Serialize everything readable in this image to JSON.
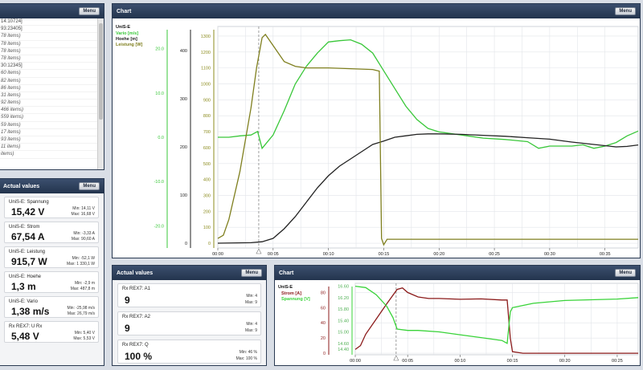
{
  "top_left_panel": {
    "menu_label": "Menu",
    "items": [
      {
        "text": "14:10724]",
        "italic": false
      },
      {
        "text": "93:23405]",
        "italic": false
      },
      {
        "text": "78 items)",
        "italic": true
      },
      {
        "text": "78 items)",
        "italic": true
      },
      {
        "text": "78 items)",
        "italic": true
      },
      {
        "text": "78 items)",
        "italic": true
      },
      {
        "text": "30:12345]",
        "italic": false
      },
      {
        "text": "60 items)",
        "italic": true
      },
      {
        "text": "82 items)",
        "italic": true
      },
      {
        "text": "86 items)",
        "italic": true
      },
      {
        "text": "31 items)",
        "italic": true
      },
      {
        "text": "92 items)",
        "italic": true
      },
      {
        "text": "466 items)",
        "italic": true
      },
      {
        "text": "559 items)",
        "italic": true
      },
      {
        "text": "59 items)",
        "italic": true
      },
      {
        "text": "17 items)",
        "italic": true
      },
      {
        "text": "93 items)",
        "italic": true
      },
      {
        "text": "11 items)",
        "italic": true
      },
      {
        "text": "items)",
        "italic": true
      }
    ]
  },
  "actual_values_left": {
    "title": "Actual values",
    "menu_label": "Menu",
    "cards": [
      {
        "name": "UniS-E: Spannung",
        "value": "15,42 V",
        "min": "Min: 14,11 V",
        "max": "Max: 16,68 V"
      },
      {
        "name": "UniS-E: Strom",
        "value": "67,54 A",
        "min": "Min: -3,33 A",
        "max": "Max: 90,60 A"
      },
      {
        "name": "UniS-E: Leistung",
        "value": "915,7 W",
        "min": "Min: -52,1 W",
        "max": "Max: 1 330,1 W"
      },
      {
        "name": "UniS-E: Hoehe",
        "value": "1,3 m",
        "min": "Min: -2,9 m",
        "max": "Max: 487,8 m"
      },
      {
        "name": "UniS-E: Vario",
        "value": "1,38 m/s",
        "min": "Min: -25,98 m/s",
        "max": "Max: 26,79 m/s"
      },
      {
        "name": "Rx REX7: U Rx",
        "value": "5,48 V",
        "min": "Min: 5,40 V",
        "max": "Max: 5,53 V"
      }
    ]
  },
  "actual_values_mid": {
    "title": "Actual values",
    "menu_label": "Menu",
    "cards": [
      {
        "name": "Rx REX7: A1",
        "value": "9",
        "min": "Min: 4",
        "max": "Max: 9"
      },
      {
        "name": "Rx REX7: A2",
        "value": "9",
        "min": "Min: 4",
        "max": "Max: 9"
      },
      {
        "name": "Rx REX7: Q",
        "value": "100 %",
        "min": "Min: 46 %",
        "max": "Max: 100 %"
      }
    ]
  },
  "main_chart": {
    "title": "Chart",
    "menu_label": "Menu",
    "legend": {
      "device": "UniS-E",
      "items": [
        {
          "label": "Vario [m/s]",
          "color": "#39c739"
        },
        {
          "label": "Hoehe [m]",
          "color": "#222222"
        },
        {
          "label": "Leistung [W]",
          "color": "#7f7f1e"
        }
      ]
    },
    "axis_vario_ticks": [
      "20.0",
      "10.0",
      "0.0",
      "-10.0",
      "-20.0"
    ],
    "axis_hoehe_ticks": [
      "400",
      "300",
      "200",
      "100",
      "0"
    ],
    "axis_leistung_ticks": [
      "1300",
      "1200",
      "1100",
      "1000",
      "900",
      "800",
      "700",
      "600",
      "500",
      "400",
      "300",
      "200",
      "100",
      "0"
    ],
    "time_ticks": [
      "00:00",
      "00:05",
      "00:10",
      "00:15",
      "00:20",
      "00:25",
      "00:30",
      "00:35"
    ],
    "colors": {
      "vario": "#39c739",
      "hoehe": "#222222",
      "leistung": "#7f7f1e",
      "vario_axis": "#39c739",
      "leistung_axis": "#8b8b1e"
    }
  },
  "small_chart": {
    "title": "Chart",
    "menu_label": "Menu",
    "legend": {
      "device": "UniS-E",
      "items": [
        {
          "label": "Strom [A]",
          "color": "#8b1a1a"
        },
        {
          "label": "Spannung [V]",
          "color": "#39d339"
        }
      ]
    },
    "axis_strom_ticks": [
      "80",
      "60",
      "40",
      "20",
      "0"
    ],
    "axis_spannung_ticks": [
      "16.60",
      "16.20",
      "15.80",
      "15.40",
      "15.00",
      "14.60",
      "14.40"
    ],
    "time_ticks": [
      "00:00",
      "00:05",
      "00:10",
      "00:15",
      "00:20",
      "00:25"
    ],
    "colors": {
      "strom": "#8b1a1a",
      "spannung": "#39d339"
    }
  },
  "chart_data": [
    {
      "type": "line",
      "title": "",
      "xlabel": "",
      "ylabel": "",
      "x_unit": "minutes",
      "xlim": [
        0,
        38
      ],
      "series": [
        {
          "name": "Vario [m/s]",
          "axis": "vario",
          "ylim": [
            -25,
            25
          ],
          "points": [
            [
              0,
              0
            ],
            [
              1,
              0
            ],
            [
              2,
              0.3
            ],
            [
              3,
              0.5
            ],
            [
              3.6,
              1.3
            ],
            [
              4,
              -2.5
            ],
            [
              5,
              0.5
            ],
            [
              6,
              6
            ],
            [
              7,
              12
            ],
            [
              8,
              16
            ],
            [
              9,
              19
            ],
            [
              10,
              21.5
            ],
            [
              11,
              21.8
            ],
            [
              12,
              22
            ],
            [
              13,
              21
            ],
            [
              14,
              19
            ],
            [
              15,
              15
            ],
            [
              16,
              11
            ],
            [
              17,
              7
            ],
            [
              18,
              4
            ],
            [
              19,
              2
            ],
            [
              20,
              1.2
            ],
            [
              22,
              0.5
            ],
            [
              24,
              -0.2
            ],
            [
              26,
              -0.5
            ],
            [
              28,
              -1
            ],
            [
              29,
              -2.5
            ],
            [
              30,
              -2
            ],
            [
              32,
              -2
            ],
            [
              33,
              -1.7
            ],
            [
              34,
              -2.5
            ],
            [
              35,
              -2
            ],
            [
              36,
              -1.2
            ],
            [
              37,
              0.3
            ],
            [
              38,
              1.4
            ]
          ]
        },
        {
          "name": "Hoehe [m]",
          "axis": "hoehe",
          "ylim": [
            -10,
            450
          ],
          "points": [
            [
              0,
              0
            ],
            [
              3,
              1
            ],
            [
              4,
              3
            ],
            [
              5,
              10
            ],
            [
              6,
              30
            ],
            [
              7,
              55
            ],
            [
              8,
              85
            ],
            [
              9,
              115
            ],
            [
              10,
              140
            ],
            [
              11,
              160
            ],
            [
              12,
              175
            ],
            [
              13,
              190
            ],
            [
              14,
              205
            ],
            [
              15,
              212
            ],
            [
              16,
              220
            ],
            [
              17,
              223
            ],
            [
              18,
              226
            ],
            [
              19,
              227
            ],
            [
              20,
              227
            ],
            [
              22,
              226
            ],
            [
              24,
              224
            ],
            [
              26,
              222
            ],
            [
              28,
              219
            ],
            [
              30,
              216
            ],
            [
              32,
              210
            ],
            [
              34,
              205
            ],
            [
              36,
              200
            ],
            [
              37,
              201
            ],
            [
              38,
              204
            ]
          ]
        },
        {
          "name": "Leistung [W]",
          "axis": "leistung",
          "ylim": [
            -30,
            1360
          ],
          "points": [
            [
              0,
              30
            ],
            [
              0.5,
              50
            ],
            [
              1,
              150
            ],
            [
              2,
              450
            ],
            [
              3,
              850
            ],
            [
              3.5,
              1100
            ],
            [
              4,
              1290
            ],
            [
              4.3,
              1310
            ],
            [
              5,
              1240
            ],
            [
              6,
              1140
            ],
            [
              7,
              1110
            ],
            [
              8,
              1100
            ],
            [
              10,
              1100
            ],
            [
              12,
              1095
            ],
            [
              14,
              1090
            ],
            [
              14.6,
              1080
            ],
            [
              14.8,
              30
            ],
            [
              15,
              -10
            ],
            [
              15.3,
              25
            ],
            [
              20,
              25
            ],
            [
              25,
              25
            ],
            [
              30,
              25
            ],
            [
              35,
              25
            ],
            [
              38,
              25
            ]
          ]
        }
      ],
      "marker_x": 3.7
    },
    {
      "type": "line",
      "title": "",
      "xlabel": "",
      "ylabel": "",
      "x_unit": "minutes",
      "xlim": [
        0,
        27
      ],
      "series": [
        {
          "name": "Strom [A]",
          "axis": "strom",
          "ylim": [
            -2,
            92
          ],
          "points": [
            [
              0,
              5
            ],
            [
              0.5,
              10
            ],
            [
              1,
              25
            ],
            [
              2,
              45
            ],
            [
              3,
              65
            ],
            [
              4,
              84
            ],
            [
              4.5,
              86
            ],
            [
              5,
              80
            ],
            [
              6,
              74
            ],
            [
              7,
              72
            ],
            [
              8,
              72
            ],
            [
              10,
              71
            ],
            [
              12,
              71.5
            ],
            [
              14,
              70
            ],
            [
              14.5,
              70
            ],
            [
              14.8,
              20
            ],
            [
              15,
              2
            ],
            [
              16,
              0
            ],
            [
              20,
              0
            ],
            [
              25,
              0
            ],
            [
              27,
              0
            ]
          ]
        },
        {
          "name": "Spannung [V]",
          "axis": "spannung",
          "ylim": [
            14.2,
            16.7
          ],
          "points": [
            [
              0,
              16.6
            ],
            [
              1,
              16.55
            ],
            [
              2,
              16.3
            ],
            [
              3,
              15.9
            ],
            [
              3.6,
              15.5
            ],
            [
              4,
              15.1
            ],
            [
              5,
              15.05
            ],
            [
              6,
              15.05
            ],
            [
              8,
              15.0
            ],
            [
              10,
              14.9
            ],
            [
              12,
              14.8
            ],
            [
              14,
              14.7
            ],
            [
              14.5,
              14.6
            ],
            [
              14.8,
              15.7
            ],
            [
              15,
              15.85
            ],
            [
              17,
              16.0
            ],
            [
              20,
              16.1
            ],
            [
              25,
              16.15
            ],
            [
              27,
              16.2
            ]
          ]
        }
      ],
      "marker_x": 3.9
    }
  ]
}
